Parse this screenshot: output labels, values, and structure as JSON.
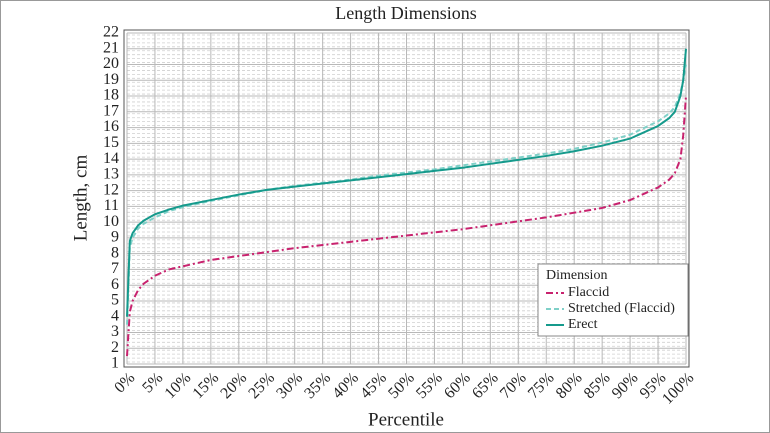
{
  "chart_data": {
    "type": "line",
    "title": "Length Dimensions",
    "x_label": "Percentile",
    "y_label": "Length, cm",
    "x": [
      0,
      0.5,
      1,
      2,
      3,
      5,
      7.5,
      10,
      15,
      20,
      25,
      30,
      35,
      40,
      45,
      50,
      55,
      60,
      65,
      70,
      75,
      80,
      85,
      90,
      95,
      97,
      98,
      99,
      99.5,
      100
    ],
    "series": [
      {
        "name": "Flaccid",
        "color": "#c8226e",
        "dash": "dashdot",
        "values": [
          1.5,
          4.3,
          5,
          5.7,
          6.1,
          6.6,
          7,
          7.2,
          7.6,
          7.85,
          8.1,
          8.35,
          8.55,
          8.75,
          8.95,
          9.15,
          9.35,
          9.55,
          9.8,
          10.05,
          10.3,
          10.6,
          10.9,
          11.4,
          12.2,
          12.7,
          13.1,
          14,
          15.5,
          18
        ]
      },
      {
        "name": "Stretched (Flaccid)",
        "color": "#7fd0c8",
        "dash": "dashed",
        "values": [
          3.5,
          8.4,
          9,
          9.6,
          9.9,
          10.3,
          10.7,
          10.95,
          11.35,
          11.7,
          12.05,
          12.3,
          12.5,
          12.7,
          12.95,
          13.15,
          13.35,
          13.6,
          13.85,
          14.1,
          14.35,
          14.65,
          15.05,
          15.55,
          16.4,
          16.9,
          17.3,
          18.2,
          19,
          20
        ]
      },
      {
        "name": "Erect",
        "color": "#159a8c",
        "dash": "solid",
        "values": [
          4,
          8.8,
          9.3,
          9.8,
          10.1,
          10.5,
          10.8,
          11.05,
          11.4,
          11.75,
          12.05,
          12.25,
          12.45,
          12.65,
          12.85,
          13.05,
          13.25,
          13.45,
          13.7,
          13.95,
          14.2,
          14.5,
          14.85,
          15.3,
          16.1,
          16.6,
          17,
          18,
          19,
          21
        ]
      }
    ],
    "legend_title": "Dimension",
    "legend_position": "lower right",
    "xlim": [
      0,
      100
    ],
    "xticks": [
      {
        "value": 0,
        "label": "0%"
      },
      {
        "value": 5,
        "label": "5%"
      },
      {
        "value": 10,
        "label": "10%"
      },
      {
        "value": 15,
        "label": "15%"
      },
      {
        "value": 20,
        "label": "20%"
      },
      {
        "value": 25,
        "label": "25%"
      },
      {
        "value": 30,
        "label": "30%"
      },
      {
        "value": 35,
        "label": "35%"
      },
      {
        "value": 40,
        "label": "40%"
      },
      {
        "value": 45,
        "label": "45%"
      },
      {
        "value": 50,
        "label": "50%"
      },
      {
        "value": 55,
        "label": "55%"
      },
      {
        "value": 60,
        "label": "60%"
      },
      {
        "value": 65,
        "label": "65%"
      },
      {
        "value": 70,
        "label": "70%"
      },
      {
        "value": 75,
        "label": "75%"
      },
      {
        "value": 80,
        "label": "80%"
      },
      {
        "value": 85,
        "label": "85%"
      },
      {
        "value": 90,
        "label": "90%"
      },
      {
        "value": 95,
        "label": "95%"
      },
      {
        "value": 100,
        "label": "100%"
      }
    ],
    "ylim": [
      1,
      22
    ],
    "yticks": [
      1,
      2,
      3,
      4,
      5,
      6,
      7,
      8,
      9,
      10,
      11,
      12,
      13,
      14,
      15,
      16,
      17,
      18,
      19,
      20,
      21,
      22
    ],
    "grid": true
  }
}
